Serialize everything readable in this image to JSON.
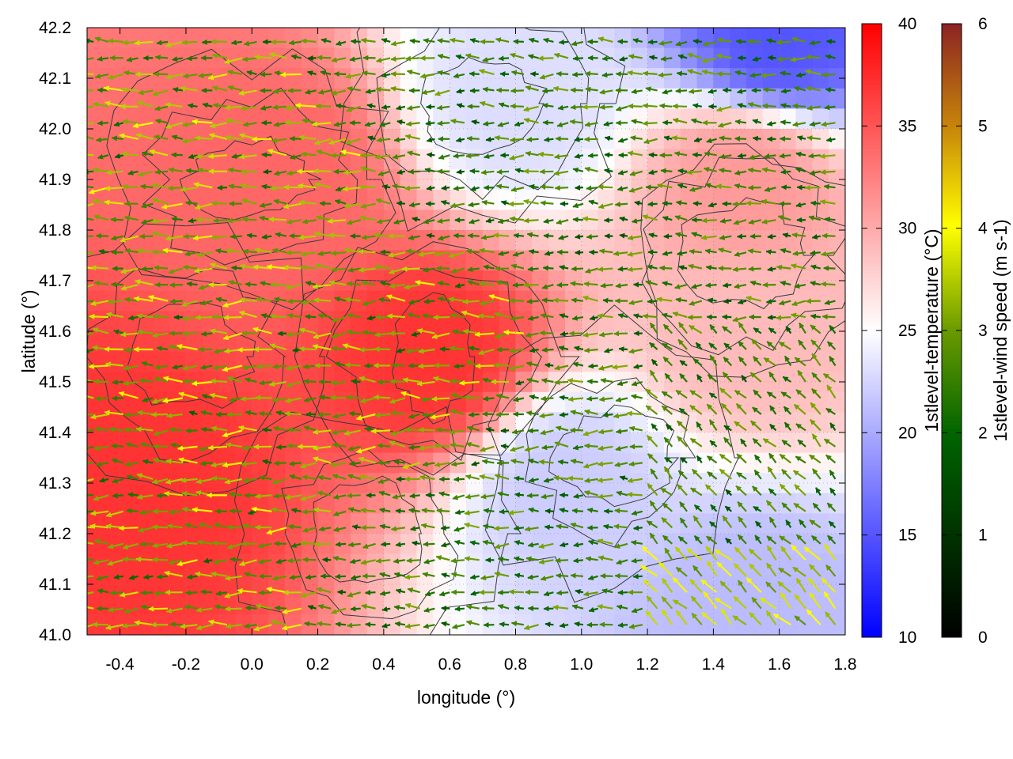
{
  "chart_data": {
    "type": "heatmap",
    "title": "",
    "xlabel": "longitude (°)",
    "ylabel": "latitude (°)",
    "xlim": [
      -0.5,
      1.8
    ],
    "ylim": [
      41.0,
      42.2
    ],
    "xticks": [
      "-0.4",
      "-0.2",
      "0.0",
      "0.2",
      "0.4",
      "0.6",
      "0.8",
      "1.0",
      "1.2",
      "1.4",
      "1.6",
      "1.8"
    ],
    "yticks": [
      "41.0",
      "41.1",
      "41.2",
      "41.3",
      "41.4",
      "41.5",
      "41.6",
      "41.7",
      "41.8",
      "41.9",
      "42.0",
      "42.1",
      "42.2"
    ],
    "grid": true,
    "overlays": [
      "wind vectors colored by speed",
      "terrain contour lines"
    ],
    "temperature_field": {
      "label": "1stlevel-temperature (°C)",
      "range": [
        10,
        40
      ],
      "ticks": [
        "10",
        "15",
        "20",
        "25",
        "30",
        "35",
        "40"
      ],
      "colormap": [
        "#0000ff",
        "#ffffff",
        "#ff0000"
      ],
      "features": [
        {
          "lon": 0.55,
          "lat": 41.55,
          "temp": 37
        },
        {
          "lon": -0.35,
          "lat": 41.3,
          "temp": 37
        },
        {
          "lon": 0.1,
          "lat": 41.9,
          "temp": 34
        },
        {
          "lon": 1.5,
          "lat": 41.9,
          "temp": 31
        },
        {
          "lon": 1.5,
          "lat": 41.6,
          "temp": 29
        },
        {
          "lon": 0.95,
          "lat": 41.3,
          "temp": 22
        },
        {
          "lon": 1.5,
          "lat": 41.05,
          "temp": 21
        },
        {
          "lon": 1.6,
          "lat": 42.18,
          "temp": 15
        },
        {
          "lon": 0.8,
          "lat": 42.05,
          "temp": 23
        }
      ]
    },
    "wind_speed": {
      "label": "1stlevel-wind speed (m s-1)",
      "range": [
        0,
        6
      ],
      "ticks": [
        "0",
        "1",
        "2",
        "3",
        "4",
        "5",
        "6"
      ],
      "colormap": [
        "#000000",
        "#006400",
        "#6a9a00",
        "#ffff00",
        "#c8860a",
        "#8b2323"
      ]
    }
  }
}
